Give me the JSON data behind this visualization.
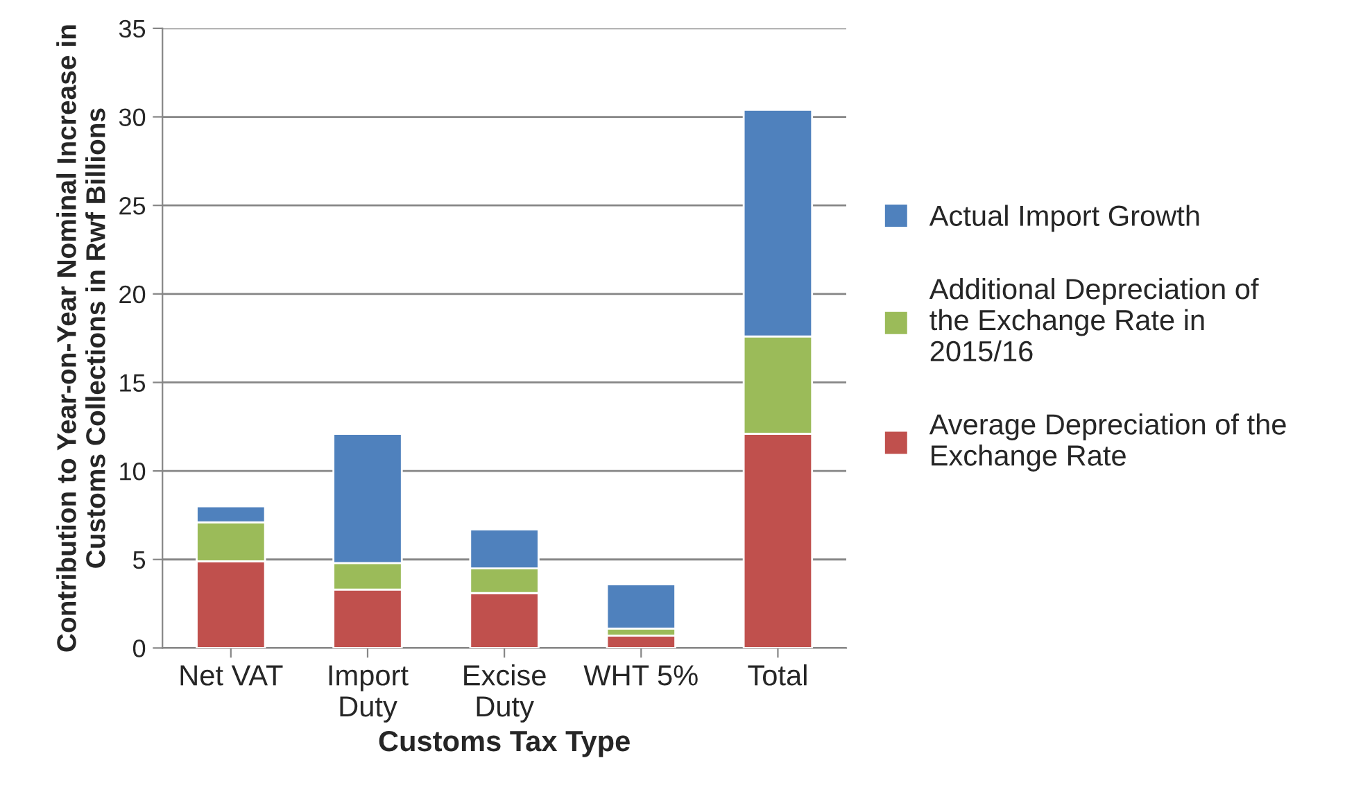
{
  "chart_data": {
    "type": "bar",
    "stacked": true,
    "xlabel": "Customs Tax Type",
    "ylabel": "Contribution to Year-on-Year Nominal Increase in\nCustoms Collections in Rwf Billions",
    "categories": [
      "Net VAT",
      "Import\nDuty",
      "Excise\nDuty",
      "WHT 5%",
      "Total"
    ],
    "series": [
      {
        "name": "Average Depreciation of the\nExchange Rate",
        "color": "#c0504d",
        "values": [
          4.9,
          3.3,
          3.1,
          0.7,
          12.1
        ]
      },
      {
        "name": "Additional Depreciation of\nthe Exchange Rate in\n2015/16",
        "color": "#9bbb59",
        "values": [
          2.2,
          1.5,
          1.4,
          0.4,
          5.5
        ]
      },
      {
        "name": "Actual Import Growth",
        "color": "#4f81bd",
        "values": [
          0.9,
          7.3,
          2.2,
          2.5,
          12.8
        ]
      }
    ],
    "ylim": [
      0,
      35
    ],
    "yticks": [
      0,
      5,
      10,
      15,
      20,
      25,
      30,
      35
    ],
    "grid": "y",
    "legend": "right"
  }
}
